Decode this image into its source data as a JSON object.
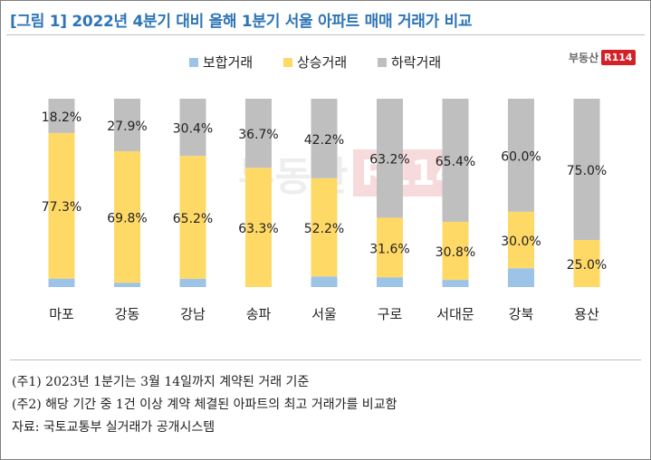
{
  "title": "[그림 1] 2022년 4분기 대비 올해 1분기 서울 아파트 매매 거래가 비교",
  "logo": {
    "text": "부동산",
    "badge": "R114"
  },
  "watermark": {
    "text": "부동산",
    "badge": "R114"
  },
  "colors": {
    "title": "#2e75b6",
    "보합거래": "#9dc3e6",
    "상승거래": "#ffd966",
    "하락거래": "#bfbfbf"
  },
  "chart_data": {
    "type": "bar",
    "stacked": true,
    "categories": [
      "마포",
      "강동",
      "강남",
      "송파",
      "서울",
      "구로",
      "서대문",
      "강북",
      "용산"
    ],
    "series": [
      {
        "name": "보합거래",
        "values": [
          4.5,
          2.3,
          4.4,
          0.0,
          5.6,
          5.2,
          3.8,
          10.0,
          0.0
        ]
      },
      {
        "name": "상승거래",
        "values": [
          77.3,
          69.8,
          65.2,
          63.3,
          52.2,
          31.6,
          30.8,
          30.0,
          25.0
        ],
        "labels": [
          "77.3%",
          "69.8%",
          "65.2%",
          "63.3%",
          "52.2%",
          "31.6%",
          "30.8%",
          "30.0%",
          "25.0%"
        ]
      },
      {
        "name": "하락거래",
        "values": [
          18.2,
          27.9,
          30.4,
          36.7,
          42.2,
          63.2,
          65.4,
          60.0,
          75.0
        ],
        "labels": [
          "18.2%",
          "27.9%",
          "30.4%",
          "36.7%",
          "42.2%",
          "63.2%",
          "65.4%",
          "60.0%",
          "75.0%"
        ]
      }
    ],
    "ylim": [
      0,
      100
    ],
    "grid": false,
    "legend_position": "top"
  },
  "notes": [
    "(주1) 2023년 1분기는 3월 14일까지 계약된 거래 기준",
    "(주2) 해당 기간 중 1건 이상 계약 체결된 아파트의 최고 거래가를 비교함",
    "자료: 국토교통부 실거래가 공개시스템"
  ]
}
